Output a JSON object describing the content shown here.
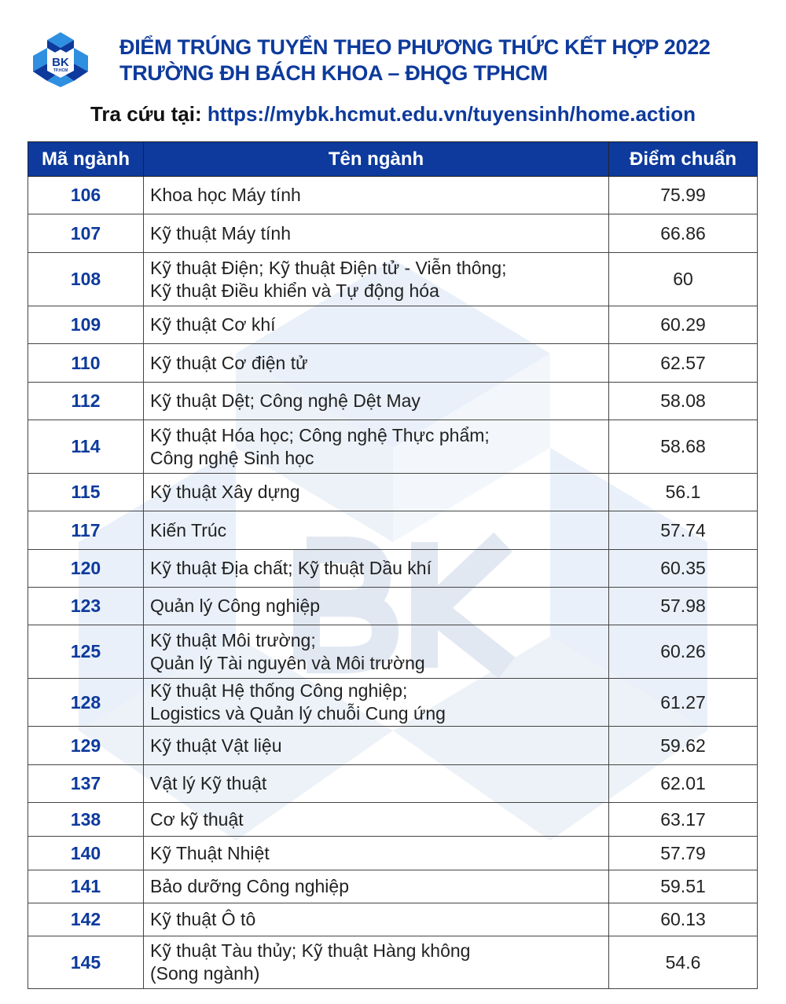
{
  "header": {
    "logo_text": "BK",
    "logo_subtext": "TP.HCM",
    "title_line1": "ĐIỂM TRÚNG TUYỂN THEO PHƯƠNG THỨC KẾT HỢP 2022",
    "title_line2": "TRƯỜNG ĐH BÁCH KHOA – ĐHQG TPHCM",
    "lookup_label": "Tra cứu tại:",
    "lookup_url": "https://mybk.hcmut.edu.vn/tuyensinh/home.action"
  },
  "colors": {
    "brand": "#0d3a9c",
    "logo_light": "#2f8fe0"
  },
  "table": {
    "columns": [
      "Mã ngành",
      "Tên ngành",
      "Điểm chuẩn"
    ],
    "rows": [
      {
        "code": "106",
        "name": "Khoa học Máy tính",
        "score": "75.99"
      },
      {
        "code": "107",
        "name": "Kỹ thuật Máy tính",
        "score": "66.86"
      },
      {
        "code": "108",
        "name": "Kỹ thuật Điện; Kỹ thuật Điện tử - Viễn thông;\nKỹ thuật Điều khiển và Tự động hóa",
        "score": "60"
      },
      {
        "code": "109",
        "name": "Kỹ thuật Cơ khí",
        "score": "60.29"
      },
      {
        "code": "110",
        "name": "Kỹ thuật Cơ điện tử",
        "score": "62.57"
      },
      {
        "code": "112",
        "name": "Kỹ thuật Dệt; Công nghệ Dệt May",
        "score": "58.08"
      },
      {
        "code": "114",
        "name": "Kỹ thuật Hóa học; Công nghệ Thực phẩm;\nCông nghệ Sinh học",
        "score": "58.68"
      },
      {
        "code": "115",
        "name": "Kỹ thuật Xây dựng",
        "score": "56.1"
      },
      {
        "code": "117",
        "name": "Kiến Trúc",
        "score": "57.74"
      },
      {
        "code": "120",
        "name": "Kỹ thuật Địa chất; Kỹ thuật Dầu khí",
        "score": "60.35"
      },
      {
        "code": "123",
        "name": "Quản lý Công nghiệp",
        "score": "57.98"
      },
      {
        "code": "125",
        "name": "Kỹ thuật Môi trường;\nQuản lý Tài nguyên và Môi trường",
        "score": "60.26"
      },
      {
        "code": "128",
        "name": "Kỹ thuật Hệ thống Công nghiệp;\nLogistics và Quản lý chuỗi Cung ứng",
        "score": "61.27"
      },
      {
        "code": "129",
        "name": "Kỹ thuật Vật liệu",
        "score": "59.62"
      },
      {
        "code": "137",
        "name": "Vật lý Kỹ thuật",
        "score": "62.01"
      },
      {
        "code": "138",
        "name": "Cơ kỹ thuật",
        "score": "63.17"
      },
      {
        "code": "140",
        "name": "Kỹ Thuật Nhiệt",
        "score": "57.79"
      },
      {
        "code": "141",
        "name": "Bảo dưỡng Công nghiệp",
        "score": "59.51"
      },
      {
        "code": "142",
        "name": "Kỹ thuật Ô tô",
        "score": "60.13"
      },
      {
        "code": "145",
        "name": "Kỹ thuật Tàu thủy; Kỹ thuật Hàng không\n(Song ngành)",
        "score": "54.6"
      }
    ]
  }
}
